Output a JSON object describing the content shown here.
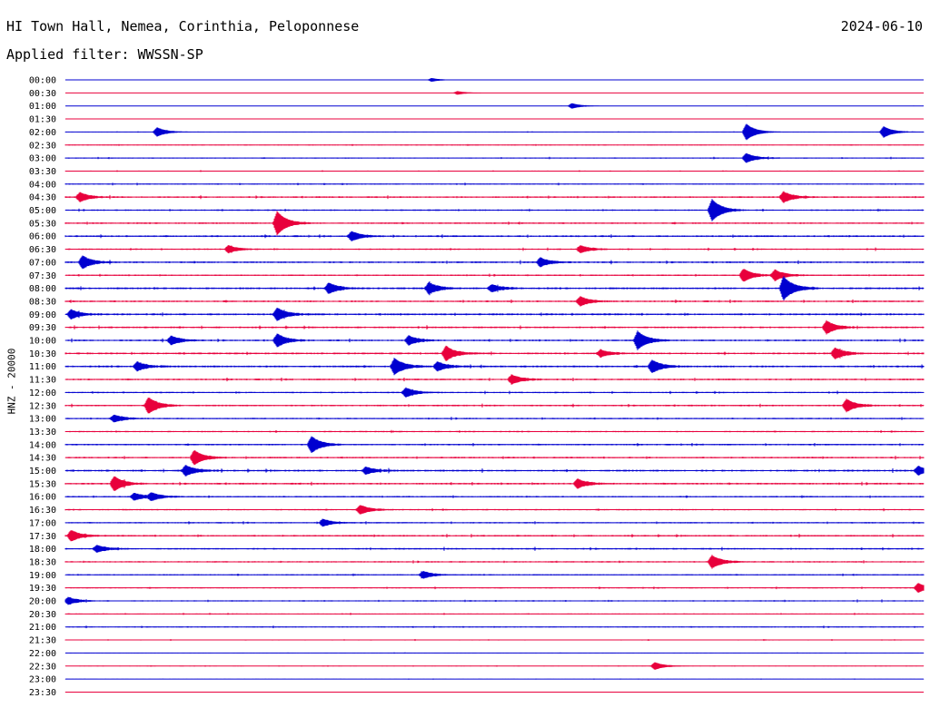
{
  "header": {
    "station": "HI Town Hall, Nemea, Corinthia, Peloponnese",
    "date": "2024-06-10",
    "filter_text": "Applied filter: WWSSN-SP"
  },
  "channel_label": "HNZ - 20000",
  "colors": {
    "trace_even": "#0000d0",
    "trace_odd": "#e8003c",
    "background": "#ffffff",
    "text": "#000000"
  },
  "chart_data": {
    "type": "line",
    "title": "HI Town Hall, Nemea, Corinthia, Peloponnese",
    "subtitle": "Applied filter: WWSSN-SP",
    "ylabel": "HNZ - 20000",
    "row_labels": [
      "00:00",
      "00:30",
      "01:00",
      "01:30",
      "02:00",
      "02:30",
      "03:00",
      "03:30",
      "04:00",
      "04:30",
      "05:00",
      "05:30",
      "06:00",
      "06:30",
      "07:00",
      "07:30",
      "08:00",
      "08:30",
      "09:00",
      "09:30",
      "10:00",
      "10:30",
      "11:00",
      "11:30",
      "12:00",
      "12:30",
      "13:00",
      "13:30",
      "14:00",
      "14:30",
      "15:00",
      "15:30",
      "16:00",
      "16:30",
      "17:00",
      "17:30",
      "18:00",
      "18:30",
      "19:00",
      "19:30",
      "20:00",
      "20:30",
      "21:00",
      "21:30",
      "22:00",
      "22:30",
      "23:00",
      "23:30"
    ],
    "row_minutes": 30,
    "noise_level": [
      0.05,
      0.05,
      0.07,
      0.06,
      0.2,
      0.3,
      0.35,
      0.3,
      0.35,
      0.5,
      0.45,
      0.5,
      0.55,
      0.45,
      0.55,
      0.45,
      0.6,
      0.55,
      0.6,
      0.55,
      0.55,
      0.55,
      0.6,
      0.55,
      0.45,
      0.5,
      0.45,
      0.45,
      0.5,
      0.5,
      0.6,
      0.55,
      0.45,
      0.45,
      0.45,
      0.5,
      0.5,
      0.45,
      0.4,
      0.4,
      0.4,
      0.3,
      0.35,
      0.3,
      0.2,
      0.2,
      0.15,
      0.1
    ],
    "events": [
      {
        "row": "00:00",
        "minute": 12.8,
        "amplitude": 2
      },
      {
        "row": "00:30",
        "minute": 13.7,
        "amplitude": 2
      },
      {
        "row": "01:00",
        "minute": 17.7,
        "amplitude": 3
      },
      {
        "row": "02:00",
        "minute": 3.2,
        "amplitude": 5
      },
      {
        "row": "02:00",
        "minute": 23.8,
        "amplitude": 9
      },
      {
        "row": "02:00",
        "minute": 28.6,
        "amplitude": 6
      },
      {
        "row": "03:00",
        "minute": 23.8,
        "amplitude": 5
      },
      {
        "row": "04:30",
        "minute": 0.5,
        "amplitude": 5
      },
      {
        "row": "04:30",
        "minute": 25.1,
        "amplitude": 6
      },
      {
        "row": "05:00",
        "minute": 22.6,
        "amplitude": 12
      },
      {
        "row": "05:30",
        "minute": 7.4,
        "amplitude": 13
      },
      {
        "row": "06:00",
        "minute": 10.0,
        "amplitude": 5
      },
      {
        "row": "06:30",
        "minute": 5.7,
        "amplitude": 4
      },
      {
        "row": "06:30",
        "minute": 18.0,
        "amplitude": 4
      },
      {
        "row": "07:00",
        "minute": 0.6,
        "amplitude": 7
      },
      {
        "row": "07:00",
        "minute": 16.6,
        "amplitude": 5
      },
      {
        "row": "07:30",
        "minute": 23.7,
        "amplitude": 7
      },
      {
        "row": "07:30",
        "minute": 24.8,
        "amplitude": 6
      },
      {
        "row": "08:00",
        "minute": 9.2,
        "amplitude": 6
      },
      {
        "row": "08:00",
        "minute": 12.7,
        "amplitude": 6
      },
      {
        "row": "08:00",
        "minute": 14.9,
        "amplitude": 4
      },
      {
        "row": "08:00",
        "minute": 25.1,
        "amplitude": 13
      },
      {
        "row": "08:30",
        "minute": 18.0,
        "amplitude": 5
      },
      {
        "row": "09:00",
        "minute": 0.2,
        "amplitude": 5
      },
      {
        "row": "09:00",
        "minute": 7.4,
        "amplitude": 7
      },
      {
        "row": "09:30",
        "minute": 26.6,
        "amplitude": 7
      },
      {
        "row": "10:00",
        "minute": 3.7,
        "amplitude": 5
      },
      {
        "row": "10:00",
        "minute": 7.4,
        "amplitude": 7
      },
      {
        "row": "10:00",
        "minute": 12.0,
        "amplitude": 5
      },
      {
        "row": "10:00",
        "minute": 20.0,
        "amplitude": 10
      },
      {
        "row": "10:30",
        "minute": 13.3,
        "amplitude": 8
      },
      {
        "row": "10:30",
        "minute": 18.7,
        "amplitude": 4
      },
      {
        "row": "10:30",
        "minute": 26.9,
        "amplitude": 6
      },
      {
        "row": "11:00",
        "minute": 2.5,
        "amplitude": 5
      },
      {
        "row": "11:00",
        "minute": 11.5,
        "amplitude": 9
      },
      {
        "row": "11:00",
        "minute": 13.0,
        "amplitude": 5
      },
      {
        "row": "11:00",
        "minute": 20.5,
        "amplitude": 7
      },
      {
        "row": "11:30",
        "minute": 15.6,
        "amplitude": 5
      },
      {
        "row": "12:00",
        "minute": 11.9,
        "amplitude": 5
      },
      {
        "row": "12:30",
        "minute": 2.9,
        "amplitude": 9
      },
      {
        "row": "12:30",
        "minute": 27.3,
        "amplitude": 7
      },
      {
        "row": "13:00",
        "minute": 1.7,
        "amplitude": 4
      },
      {
        "row": "14:00",
        "minute": 8.6,
        "amplitude": 9
      },
      {
        "row": "14:30",
        "minute": 4.5,
        "amplitude": 8
      },
      {
        "row": "15:00",
        "minute": 4.2,
        "amplitude": 6
      },
      {
        "row": "15:00",
        "minute": 10.5,
        "amplitude": 4
      },
      {
        "row": "15:00",
        "minute": 29.8,
        "amplitude": 5
      },
      {
        "row": "15:30",
        "minute": 1.7,
        "amplitude": 8
      },
      {
        "row": "15:30",
        "minute": 17.9,
        "amplitude": 5
      },
      {
        "row": "16:00",
        "minute": 2.4,
        "amplitude": 4
      },
      {
        "row": "16:00",
        "minute": 3.0,
        "amplitude": 4
      },
      {
        "row": "16:30",
        "minute": 10.3,
        "amplitude": 5
      },
      {
        "row": "17:00",
        "minute": 9.0,
        "amplitude": 4
      },
      {
        "row": "17:30",
        "minute": 0.2,
        "amplitude": 6
      },
      {
        "row": "18:00",
        "minute": 1.1,
        "amplitude": 4
      },
      {
        "row": "18:30",
        "minute": 22.6,
        "amplitude": 7
      },
      {
        "row": "19:00",
        "minute": 12.5,
        "amplitude": 4
      },
      {
        "row": "19:30",
        "minute": 29.8,
        "amplitude": 5
      },
      {
        "row": "20:00",
        "minute": 0.1,
        "amplitude": 4
      },
      {
        "row": "22:30",
        "minute": 20.6,
        "amplitude": 4
      }
    ]
  }
}
